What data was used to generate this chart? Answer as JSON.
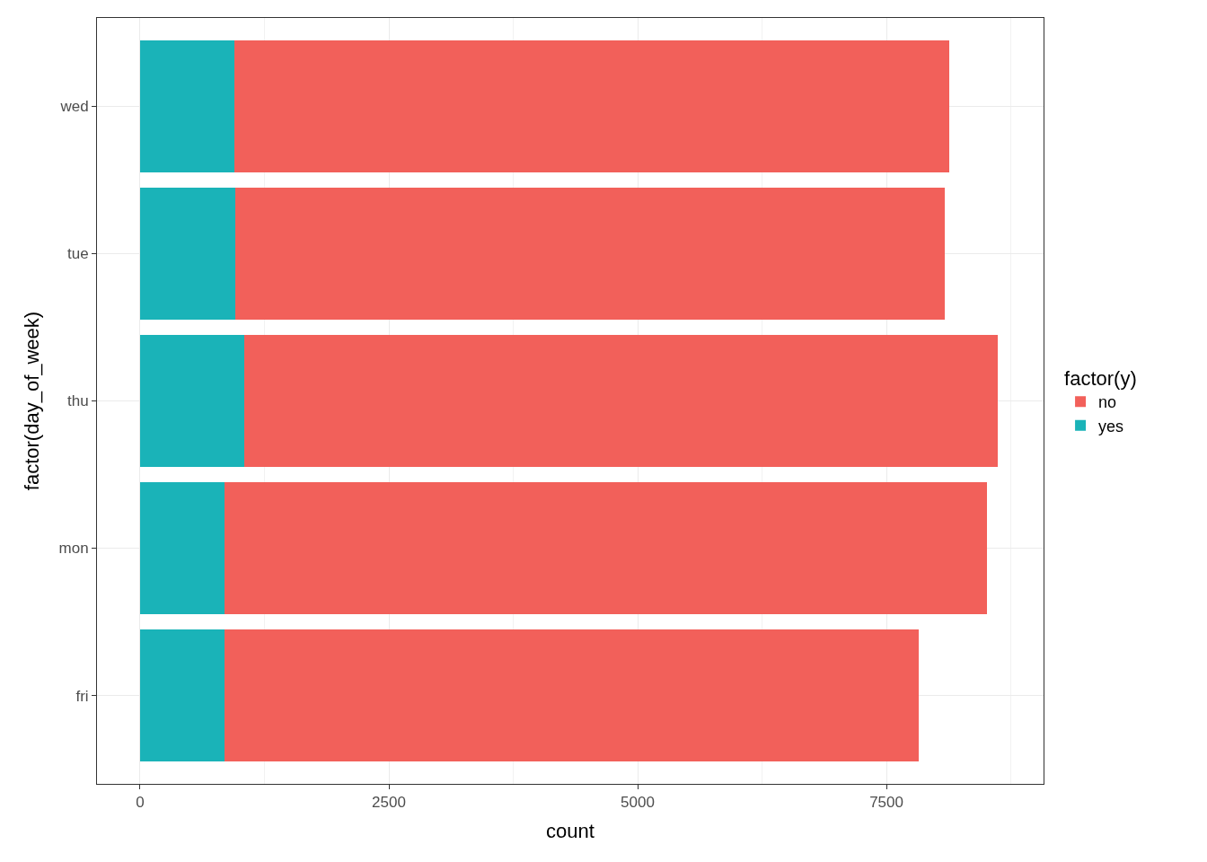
{
  "chart_data": {
    "type": "bar",
    "orientation": "horizontal",
    "stacked": true,
    "xlabel": "count",
    "ylabel": "factor(day_of_week)",
    "legend_title": "factor(y)",
    "legend": "right",
    "grid": true,
    "categories": [
      "wed",
      "tue",
      "thu",
      "mon",
      "fri"
    ],
    "series": [
      {
        "name": "yes",
        "color": "#1ab3b8",
        "values": [
          949,
          953,
          1045,
          847,
          846
        ]
      },
      {
        "name": "no",
        "color": "#f2605a",
        "values": [
          7185,
          7137,
          7578,
          7667,
          6981
        ]
      }
    ],
    "xlim": [
      -433,
      9079
    ],
    "xticks": [
      0,
      2500,
      5000,
      7500
    ]
  }
}
